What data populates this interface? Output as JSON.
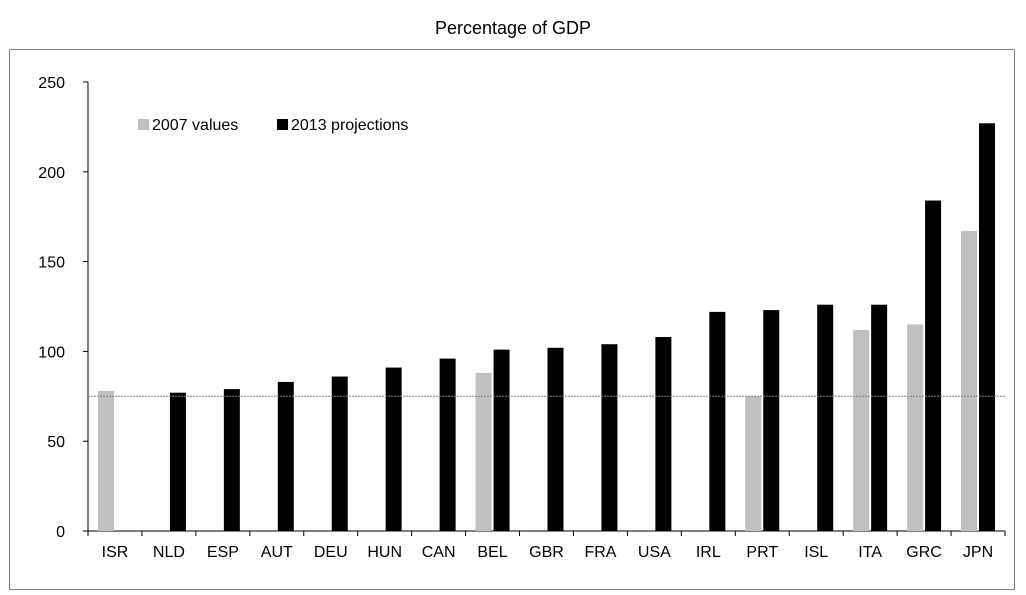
{
  "chart_data": {
    "type": "bar",
    "title": "Percentage of GDP",
    "xlabel": "",
    "ylabel": "",
    "ylim": [
      0,
      250
    ],
    "yticks": [
      0,
      50,
      100,
      150,
      200,
      250
    ],
    "categories": [
      "ISR",
      "NLD",
      "ESP",
      "AUT",
      "DEU",
      "HUN",
      "CAN",
      "BEL",
      "GBR",
      "FRA",
      "USA",
      "IRL",
      "PRT",
      "ISL",
      "ITA",
      "GRC",
      "JPN"
    ],
    "series": [
      {
        "name": "2007 values",
        "color": "#c0c0c0",
        "values": [
          78,
          null,
          null,
          null,
          null,
          null,
          null,
          88,
          null,
          null,
          null,
          null,
          75,
          null,
          112,
          115,
          167
        ]
      },
      {
        "name": "2013 projections",
        "color": "#000000",
        "values": [
          null,
          77,
          79,
          83,
          86,
          91,
          96,
          101,
          102,
          104,
          108,
          122,
          123,
          126,
          126,
          184,
          227
        ]
      }
    ],
    "reference_line": 75,
    "legend_position": "top-left",
    "grid": false
  }
}
